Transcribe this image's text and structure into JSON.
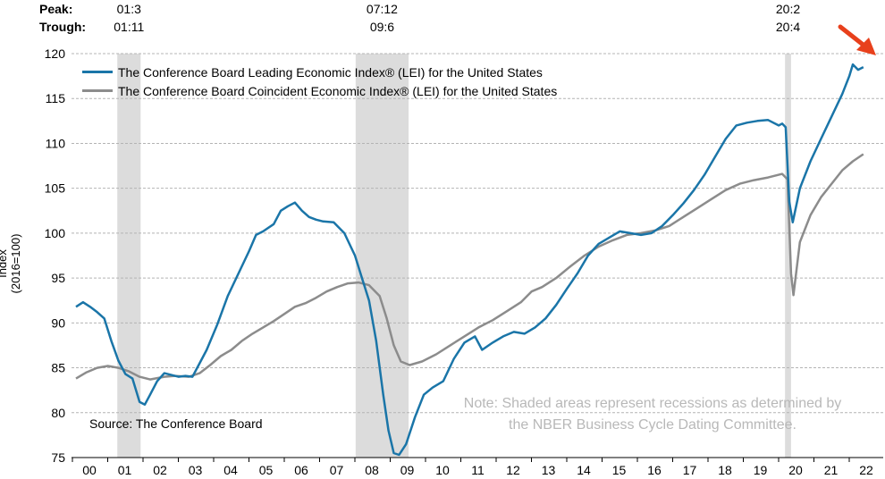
{
  "chart_data": {
    "type": "line",
    "ylabel": "Index (2016=100)",
    "ylim": [
      75,
      120
    ],
    "y_ticks": [
      75,
      80,
      85,
      90,
      95,
      100,
      105,
      110,
      115,
      120
    ],
    "x_ticks": [
      "00",
      "01",
      "02",
      "03",
      "04",
      "05",
      "06",
      "07",
      "08",
      "09",
      "10",
      "11",
      "12",
      "13",
      "14",
      "15",
      "16",
      "17",
      "18",
      "19",
      "20",
      "21",
      "22"
    ],
    "x_range": [
      2000.0,
      2022.3
    ],
    "grid": "horizontal-dashed",
    "legend_position": "top-left",
    "recessions": [
      {
        "peak": "01:3",
        "trough": "01:11",
        "start": 2001.17,
        "end": 2001.83
      },
      {
        "peak": "07:12",
        "trough": "09:6",
        "start": 2007.92,
        "end": 2009.42
      },
      {
        "peak": "20:2",
        "trough": "20:4",
        "start": 2020.08,
        "end": 2020.25
      }
    ],
    "series": [
      {
        "name": "The Conference Board Leading Economic Index® (LEI) for the United States",
        "color": "#1a75a8",
        "points": [
          [
            2000.0,
            91.8
          ],
          [
            2000.2,
            92.3
          ],
          [
            2000.4,
            91.8
          ],
          [
            2000.6,
            91.2
          ],
          [
            2000.8,
            90.5
          ],
          [
            2001.0,
            88.0
          ],
          [
            2001.2,
            85.8
          ],
          [
            2001.4,
            84.3
          ],
          [
            2001.6,
            83.8
          ],
          [
            2001.8,
            81.2
          ],
          [
            2001.95,
            80.9
          ],
          [
            2002.1,
            82.0
          ],
          [
            2002.3,
            83.5
          ],
          [
            2002.5,
            84.4
          ],
          [
            2002.7,
            84.2
          ],
          [
            2002.9,
            84.0
          ],
          [
            2003.1,
            84.1
          ],
          [
            2003.3,
            84.0
          ],
          [
            2003.5,
            85.5
          ],
          [
            2003.7,
            87.0
          ],
          [
            2004.0,
            89.8
          ],
          [
            2004.3,
            93.0
          ],
          [
            2004.6,
            95.5
          ],
          [
            2004.9,
            98.0
          ],
          [
            2005.1,
            99.8
          ],
          [
            2005.3,
            100.2
          ],
          [
            2005.6,
            101.0
          ],
          [
            2005.8,
            102.5
          ],
          [
            2006.0,
            103.0
          ],
          [
            2006.2,
            103.4
          ],
          [
            2006.4,
            102.5
          ],
          [
            2006.6,
            101.8
          ],
          [
            2006.8,
            101.5
          ],
          [
            2007.0,
            101.3
          ],
          [
            2007.3,
            101.2
          ],
          [
            2007.6,
            100.0
          ],
          [
            2007.9,
            97.5
          ],
          [
            2008.1,
            95.0
          ],
          [
            2008.3,
            92.5
          ],
          [
            2008.5,
            88.0
          ],
          [
            2008.7,
            82.0
          ],
          [
            2008.85,
            78.0
          ],
          [
            2009.0,
            75.5
          ],
          [
            2009.15,
            75.3
          ],
          [
            2009.35,
            76.5
          ],
          [
            2009.6,
            79.5
          ],
          [
            2009.85,
            82.0
          ],
          [
            2010.1,
            82.8
          ],
          [
            2010.4,
            83.5
          ],
          [
            2010.7,
            86.0
          ],
          [
            2011.0,
            87.8
          ],
          [
            2011.3,
            88.5
          ],
          [
            2011.5,
            87.0
          ],
          [
            2011.8,
            87.8
          ],
          [
            2012.1,
            88.5
          ],
          [
            2012.4,
            89.0
          ],
          [
            2012.7,
            88.8
          ],
          [
            2013.0,
            89.5
          ],
          [
            2013.3,
            90.5
          ],
          [
            2013.6,
            92.0
          ],
          [
            2013.9,
            93.8
          ],
          [
            2014.2,
            95.5
          ],
          [
            2014.5,
            97.5
          ],
          [
            2014.8,
            98.8
          ],
          [
            2015.1,
            99.5
          ],
          [
            2015.4,
            100.2
          ],
          [
            2015.7,
            100.0
          ],
          [
            2016.0,
            99.8
          ],
          [
            2016.3,
            100.0
          ],
          [
            2016.6,
            100.8
          ],
          [
            2016.9,
            102.0
          ],
          [
            2017.2,
            103.3
          ],
          [
            2017.5,
            104.8
          ],
          [
            2017.8,
            106.5
          ],
          [
            2018.1,
            108.5
          ],
          [
            2018.4,
            110.5
          ],
          [
            2018.7,
            112.0
          ],
          [
            2019.0,
            112.3
          ],
          [
            2019.3,
            112.5
          ],
          [
            2019.6,
            112.6
          ],
          [
            2019.9,
            112.0
          ],
          [
            2020.0,
            112.2
          ],
          [
            2020.1,
            111.8
          ],
          [
            2020.2,
            103.5
          ],
          [
            2020.3,
            101.2
          ],
          [
            2020.5,
            105.0
          ],
          [
            2020.8,
            108.0
          ],
          [
            2021.1,
            110.5
          ],
          [
            2021.4,
            113.0
          ],
          [
            2021.7,
            115.5
          ],
          [
            2021.9,
            117.5
          ],
          [
            2022.0,
            118.8
          ],
          [
            2022.15,
            118.2
          ],
          [
            2022.3,
            118.5
          ]
        ]
      },
      {
        "name": "The Conference Board Coincident Economic Index® (LEI) for the United States",
        "color": "#8c8c8c",
        "points": [
          [
            2000.0,
            83.8
          ],
          [
            2000.3,
            84.5
          ],
          [
            2000.6,
            85.0
          ],
          [
            2000.9,
            85.2
          ],
          [
            2001.2,
            85.0
          ],
          [
            2001.5,
            84.6
          ],
          [
            2001.8,
            84.0
          ],
          [
            2002.1,
            83.7
          ],
          [
            2002.5,
            84.0
          ],
          [
            2002.8,
            84.1
          ],
          [
            2003.2,
            84.0
          ],
          [
            2003.5,
            84.4
          ],
          [
            2003.8,
            85.3
          ],
          [
            2004.1,
            86.3
          ],
          [
            2004.4,
            87.0
          ],
          [
            2004.7,
            88.0
          ],
          [
            2005.0,
            88.8
          ],
          [
            2005.3,
            89.5
          ],
          [
            2005.6,
            90.2
          ],
          [
            2005.9,
            91.0
          ],
          [
            2006.2,
            91.8
          ],
          [
            2006.5,
            92.2
          ],
          [
            2006.8,
            92.8
          ],
          [
            2007.1,
            93.5
          ],
          [
            2007.4,
            94.0
          ],
          [
            2007.7,
            94.4
          ],
          [
            2008.0,
            94.5
          ],
          [
            2008.3,
            94.2
          ],
          [
            2008.6,
            93.0
          ],
          [
            2008.8,
            90.5
          ],
          [
            2009.0,
            87.5
          ],
          [
            2009.2,
            85.7
          ],
          [
            2009.45,
            85.3
          ],
          [
            2009.8,
            85.7
          ],
          [
            2010.2,
            86.5
          ],
          [
            2010.6,
            87.5
          ],
          [
            2011.0,
            88.5
          ],
          [
            2011.4,
            89.5
          ],
          [
            2011.8,
            90.3
          ],
          [
            2012.2,
            91.3
          ],
          [
            2012.6,
            92.3
          ],
          [
            2012.9,
            93.5
          ],
          [
            2013.2,
            94.0
          ],
          [
            2013.6,
            95.0
          ],
          [
            2014.0,
            96.3
          ],
          [
            2014.4,
            97.5
          ],
          [
            2014.8,
            98.5
          ],
          [
            2015.2,
            99.2
          ],
          [
            2015.6,
            99.8
          ],
          [
            2016.0,
            100.0
          ],
          [
            2016.4,
            100.3
          ],
          [
            2016.8,
            100.8
          ],
          [
            2017.2,
            101.8
          ],
          [
            2017.6,
            102.8
          ],
          [
            2018.0,
            103.8
          ],
          [
            2018.4,
            104.8
          ],
          [
            2018.8,
            105.5
          ],
          [
            2019.2,
            105.9
          ],
          [
            2019.6,
            106.2
          ],
          [
            2020.0,
            106.6
          ],
          [
            2020.15,
            106.0
          ],
          [
            2020.25,
            95.5
          ],
          [
            2020.32,
            93.1
          ],
          [
            2020.5,
            99.0
          ],
          [
            2020.8,
            102.0
          ],
          [
            2021.1,
            104.0
          ],
          [
            2021.4,
            105.5
          ],
          [
            2021.7,
            107.0
          ],
          [
            2022.0,
            108.0
          ],
          [
            2022.3,
            108.8
          ]
        ]
      }
    ]
  },
  "labels": {
    "peak_label": "Peak:",
    "trough_label": "Trough:",
    "source": "Source: The Conference Board",
    "note_line1": "Note: Shaded areas represent recessions as determined by",
    "note_line2": "the NBER Business Cycle Dating Committee."
  },
  "colors": {
    "recession_shade": "#dcdcdc",
    "arrow": "#e8401c",
    "grid": "#b4b4b4"
  }
}
